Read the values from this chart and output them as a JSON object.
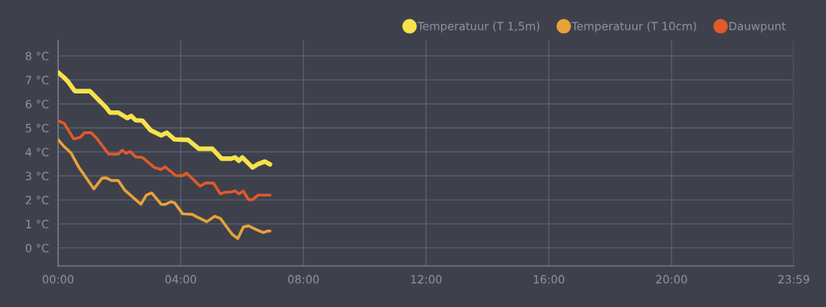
{
  "chart_data": {
    "type": "line",
    "legend": "top right",
    "grid": true,
    "xlim": [
      0,
      23.983
    ],
    "ylim": [
      -0.75,
      8.65
    ],
    "xticks": [
      {
        "value": 0,
        "label": "00:00"
      },
      {
        "value": 4,
        "label": "04:00"
      },
      {
        "value": 8,
        "label": "08:00"
      },
      {
        "value": 12,
        "label": "12:00"
      },
      {
        "value": 16,
        "label": "16:00"
      },
      {
        "value": 20,
        "label": "20:00"
      },
      {
        "value": 23.983,
        "label": "23:59"
      }
    ],
    "yticks": [
      {
        "value": 0,
        "label": "0 °C"
      },
      {
        "value": 1,
        "label": "1 °C"
      },
      {
        "value": 2,
        "label": "2 °C"
      },
      {
        "value": 3,
        "label": "3 °C"
      },
      {
        "value": 4,
        "label": "4 °C"
      },
      {
        "value": 5,
        "label": "5 °C"
      },
      {
        "value": 6,
        "label": "6 °C"
      },
      {
        "value": 7,
        "label": "7 °C"
      },
      {
        "value": 8,
        "label": "8 °C"
      }
    ],
    "series": [
      {
        "name": "Temperatuur (T 1,5m)",
        "color": "#f7e24b",
        "x": [
          0,
          0.2,
          0.33,
          0.55,
          1.04,
          1.3,
          1.56,
          1.69,
          1.96,
          2.26,
          2.38,
          2.53,
          2.75,
          3.01,
          3.36,
          3.54,
          3.8,
          4.24,
          4.59,
          5.03,
          5.33,
          5.64,
          5.77,
          5.89,
          6.01,
          6.34,
          6.52,
          6.74,
          6.91
        ],
        "values": [
          7.31,
          7.09,
          6.92,
          6.53,
          6.53,
          6.19,
          5.86,
          5.64,
          5.64,
          5.41,
          5.5,
          5.32,
          5.3,
          4.91,
          4.69,
          4.8,
          4.52,
          4.5,
          4.13,
          4.13,
          3.72,
          3.72,
          3.77,
          3.63,
          3.77,
          3.35,
          3.49,
          3.6,
          3.48
        ]
      },
      {
        "name": "Temperatuur (T 10cm)",
        "color": "#e8a23a",
        "x": [
          0,
          0.16,
          0.42,
          0.68,
          1.17,
          1.43,
          1.56,
          1.74,
          1.96,
          2.18,
          2.7,
          2.88,
          3.05,
          3.36,
          3.49,
          3.67,
          3.8,
          4.06,
          4.37,
          4.5,
          4.85,
          5.11,
          5.29,
          5.68,
          5.86,
          6.04,
          6.21,
          6.43,
          6.69,
          6.82,
          6.91
        ],
        "values": [
          4.52,
          4.27,
          3.96,
          3.35,
          2.46,
          2.9,
          2.92,
          2.81,
          2.81,
          2.4,
          1.82,
          2.2,
          2.29,
          1.82,
          1.81,
          1.92,
          1.88,
          1.42,
          1.4,
          1.31,
          1.09,
          1.32,
          1.23,
          0.56,
          0.39,
          0.87,
          0.92,
          0.78,
          0.64,
          0.7,
          0.7
        ]
      },
      {
        "name": "Dauwpunt",
        "color": "#e05a2b",
        "x": [
          0,
          0.2,
          0.51,
          0.73,
          0.86,
          1.08,
          1.25,
          1.65,
          1.96,
          2.09,
          2.22,
          2.35,
          2.53,
          2.75,
          3.14,
          3.36,
          3.49,
          3.84,
          4.06,
          4.19,
          4.63,
          4.81,
          5.07,
          5.29,
          5.42,
          5.68,
          5.77,
          5.9,
          6.04,
          6.21,
          6.34,
          6.52,
          6.91
        ],
        "values": [
          5.3,
          5.19,
          4.54,
          4.61,
          4.8,
          4.8,
          4.58,
          3.91,
          3.91,
          4.07,
          3.94,
          4.02,
          3.79,
          3.77,
          3.35,
          3.27,
          3.38,
          3.01,
          3.01,
          3.12,
          2.57,
          2.71,
          2.7,
          2.25,
          2.31,
          2.34,
          2.38,
          2.25,
          2.37,
          2.01,
          2.01,
          2.2,
          2.2
        ]
      }
    ]
  }
}
